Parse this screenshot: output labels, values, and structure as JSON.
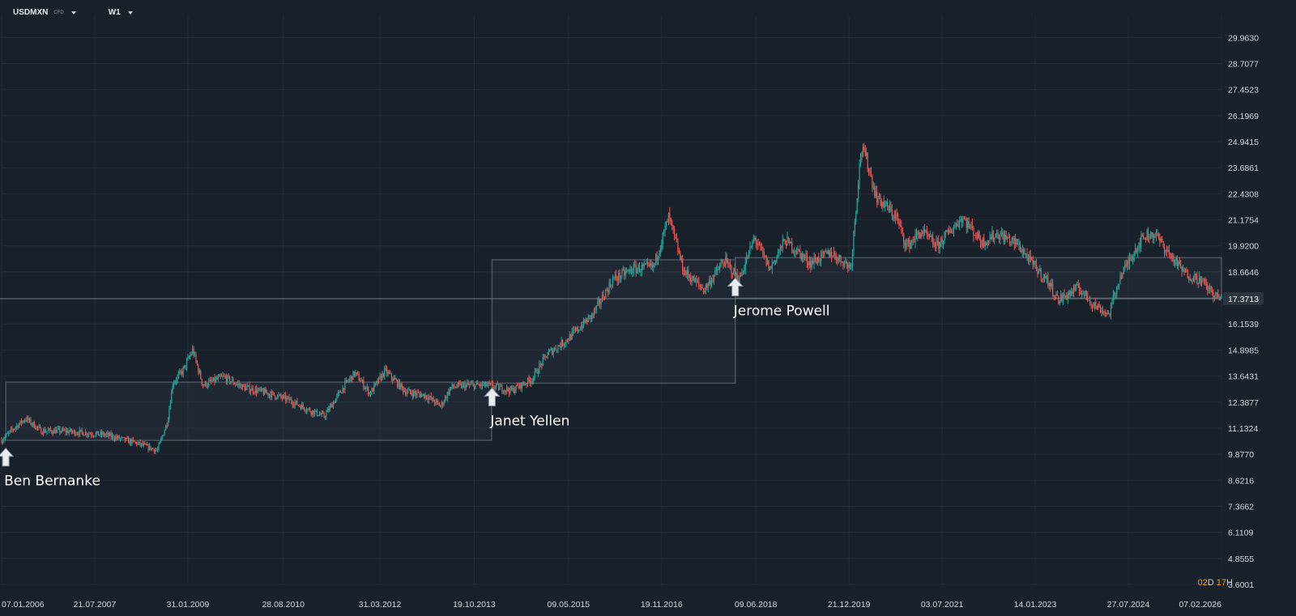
{
  "toolbar": {
    "symbol": "USDMXN",
    "symbol_type": "CFD",
    "timeframe": "W1"
  },
  "timer": {
    "days": "02",
    "days_unit": "D",
    "hours": "17",
    "hours_unit": "H"
  },
  "colors": {
    "background": "#18202a",
    "grid": "#222c36",
    "up": "#26a69a",
    "down": "#ef5350",
    "annotation": "#ffffff",
    "box_stroke": "#4a5560",
    "price_line": "#6e7a86"
  },
  "chart_data": {
    "type": "candlestick",
    "x_axis_type": "date",
    "y_axis_position": "right",
    "ylim": [
      3.6001,
      30.6
    ],
    "y_ticks": [
      "29.9630",
      "28.7077",
      "27.4523",
      "26.1969",
      "24.9415",
      "23.6861",
      "22.4308",
      "21.1754",
      "19.9200",
      "18.6646",
      "17.3713",
      "16.1539",
      "14.8985",
      "13.6431",
      "12.3877",
      "11.1324",
      "9.8770",
      "8.6216",
      "7.3662",
      "6.1109",
      "4.8555",
      "3.6001"
    ],
    "x_ticks": [
      "07.01.2006",
      "21.07.2007",
      "31.01.2009",
      "28.08.2010",
      "31.03.2012",
      "19.10.2013",
      "09.05.2015",
      "19.11.2016",
      "09.06.2018",
      "21.12.2019",
      "03.07.2021",
      "14.01.2023",
      "27.07.2024",
      "07.02.2026"
    ],
    "x_range": [
      "2006-01-07",
      "2026-02-07"
    ],
    "current_price": 17.3713,
    "price_series": [
      [
        "2006-01-07",
        10.55
      ],
      [
        "2006-04-01",
        11.2
      ],
      [
        "2006-06-01",
        11.6
      ],
      [
        "2006-09-01",
        11.0
      ],
      [
        "2007-01-01",
        11.0
      ],
      [
        "2007-06-01",
        10.9
      ],
      [
        "2007-10-01",
        10.8
      ],
      [
        "2008-04-01",
        10.4
      ],
      [
        "2008-08-01",
        10.05
      ],
      [
        "2008-10-01",
        11.5
      ],
      [
        "2008-11-01",
        13.3
      ],
      [
        "2009-01-01",
        13.9
      ],
      [
        "2009-03-01",
        14.9
      ],
      [
        "2009-05-01",
        13.2
      ],
      [
        "2009-09-01",
        13.6
      ],
      [
        "2010-01-01",
        13.1
      ],
      [
        "2010-06-01",
        12.8
      ],
      [
        "2010-10-01",
        12.5
      ],
      [
        "2011-02-01",
        12.0
      ],
      [
        "2011-05-01",
        11.7
      ],
      [
        "2011-09-01",
        13.2
      ],
      [
        "2011-11-01",
        13.8
      ],
      [
        "2012-02-01",
        12.8
      ],
      [
        "2012-05-01",
        13.9
      ],
      [
        "2012-09-01",
        12.9
      ],
      [
        "2013-01-01",
        12.7
      ],
      [
        "2013-04-01",
        12.2
      ],
      [
        "2013-06-01",
        13.1
      ],
      [
        "2013-09-01",
        13.2
      ],
      [
        "2014-01-01",
        13.2
      ],
      [
        "2014-06-01",
        12.95
      ],
      [
        "2014-10-01",
        13.5
      ],
      [
        "2015-01-01",
        14.7
      ],
      [
        "2015-05-01",
        15.4
      ],
      [
        "2015-10-01",
        16.6
      ],
      [
        "2016-02-01",
        18.3
      ],
      [
        "2016-06-01",
        18.8
      ],
      [
        "2016-10-01",
        18.9
      ],
      [
        "2017-01-01",
        21.3
      ],
      [
        "2017-04-01",
        18.7
      ],
      [
        "2017-08-01",
        17.8
      ],
      [
        "2017-12-01",
        19.2
      ],
      [
        "2018-03-01",
        18.3
      ],
      [
        "2018-06-01",
        20.3
      ],
      [
        "2018-09-01",
        18.8
      ],
      [
        "2018-12-01",
        20.2
      ],
      [
        "2019-05-01",
        19.1
      ],
      [
        "2019-09-01",
        19.6
      ],
      [
        "2020-01-01",
        18.9
      ],
      [
        "2020-03-01",
        24.5
      ],
      [
        "2020-04-01",
        24.2
      ],
      [
        "2020-06-01",
        22.3
      ],
      [
        "2020-10-01",
        21.3
      ],
      [
        "2020-12-01",
        19.9
      ],
      [
        "2021-03-01",
        20.6
      ],
      [
        "2021-06-01",
        19.9
      ],
      [
        "2021-11-01",
        21.3
      ],
      [
        "2022-03-01",
        20.1
      ],
      [
        "2022-06-01",
        20.5
      ],
      [
        "2022-10-01",
        20.0
      ],
      [
        "2023-01-01",
        19.0
      ],
      [
        "2023-04-01",
        18.2
      ],
      [
        "2023-06-01",
        17.3
      ],
      [
        "2023-10-01",
        17.9
      ],
      [
        "2024-01-01",
        17.1
      ],
      [
        "2024-04-01",
        16.6
      ],
      [
        "2024-06-01",
        18.3
      ],
      [
        "2024-09-01",
        19.7
      ],
      [
        "2024-11-01",
        20.4
      ],
      [
        "2025-01-01",
        20.5
      ],
      [
        "2025-04-01",
        19.5
      ],
      [
        "2025-07-01",
        18.6
      ],
      [
        "2025-10-01",
        18.3
      ],
      [
        "2026-01-01",
        17.5
      ],
      [
        "2026-02-07",
        17.3713
      ]
    ],
    "annotations": [
      {
        "label": "Ben Bernanke",
        "date": "2006-02-01",
        "price": 10.4,
        "box_from": "2006-02-01",
        "box_to": "2014-02-01",
        "box_low": 10.55,
        "box_high": 13.35
      },
      {
        "label": "Janet Yellen",
        "date": "2014-02-03",
        "price": 13.3,
        "box_from": "2014-02-03",
        "box_to": "2018-02-05",
        "box_low": 13.3,
        "box_high": 19.25
      },
      {
        "label": "Jerome Powell",
        "date": "2018-02-05",
        "price": 18.6,
        "box_from": "2018-02-05",
        "box_to": "2026-02-07",
        "box_low": 17.4,
        "box_high": 19.35
      }
    ]
  }
}
